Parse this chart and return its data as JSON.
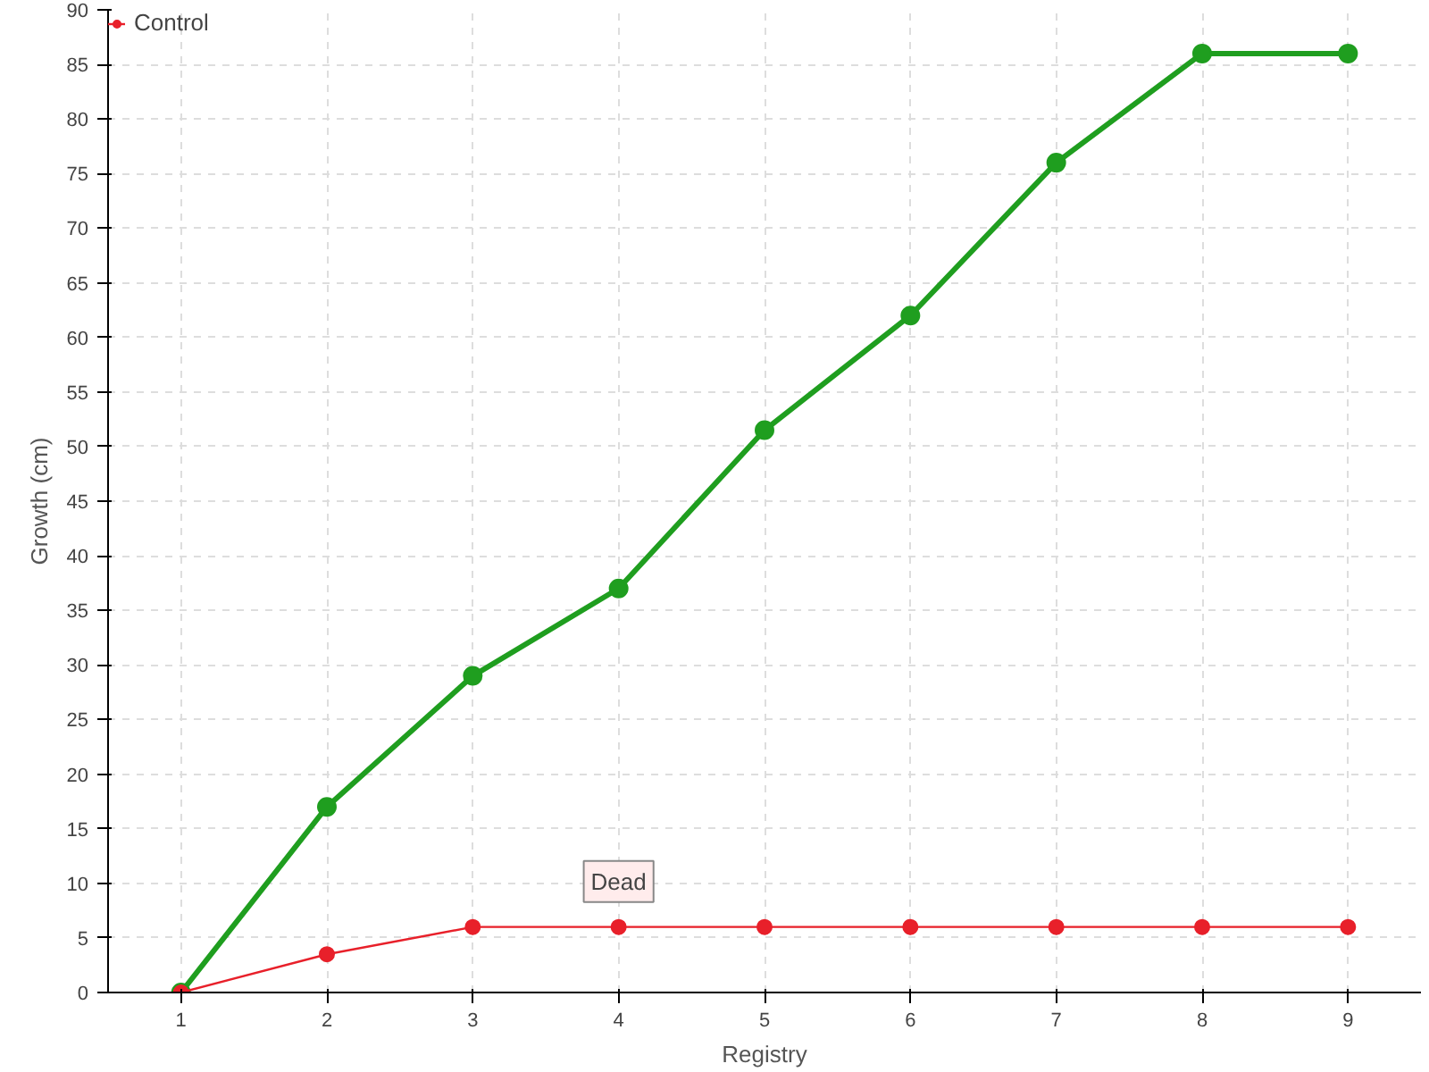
{
  "chart_data": {
    "type": "line",
    "xlabel": "Registry",
    "ylabel": "Growth (cm)",
    "x": [
      1,
      2,
      3,
      4,
      5,
      6,
      7,
      8,
      9
    ],
    "series": [
      {
        "color": "#1f9e1f",
        "values": [
          0,
          17,
          29,
          37,
          51.5,
          62,
          76,
          86,
          86
        ]
      },
      {
        "name": "Control",
        "color": "#e8202a",
        "values": [
          0,
          3.5,
          6,
          6,
          6,
          6,
          6,
          6,
          6
        ]
      }
    ],
    "annotations": [
      {
        "text": "Dead",
        "x": 4,
        "y": 6
      }
    ],
    "xlim": [
      0.5,
      9.5
    ],
    "xticks": [
      1,
      2,
      3,
      4,
      5,
      6,
      7,
      8,
      9
    ],
    "ylim": [
      0,
      90
    ],
    "yticks": [
      0,
      5,
      10,
      15,
      20,
      25,
      30,
      35,
      40,
      45,
      50,
      55,
      60,
      65,
      70,
      75,
      80,
      85,
      90
    ],
    "grid": true,
    "legend": "top left",
    "marker": "circle",
    "line_style": "solid"
  }
}
